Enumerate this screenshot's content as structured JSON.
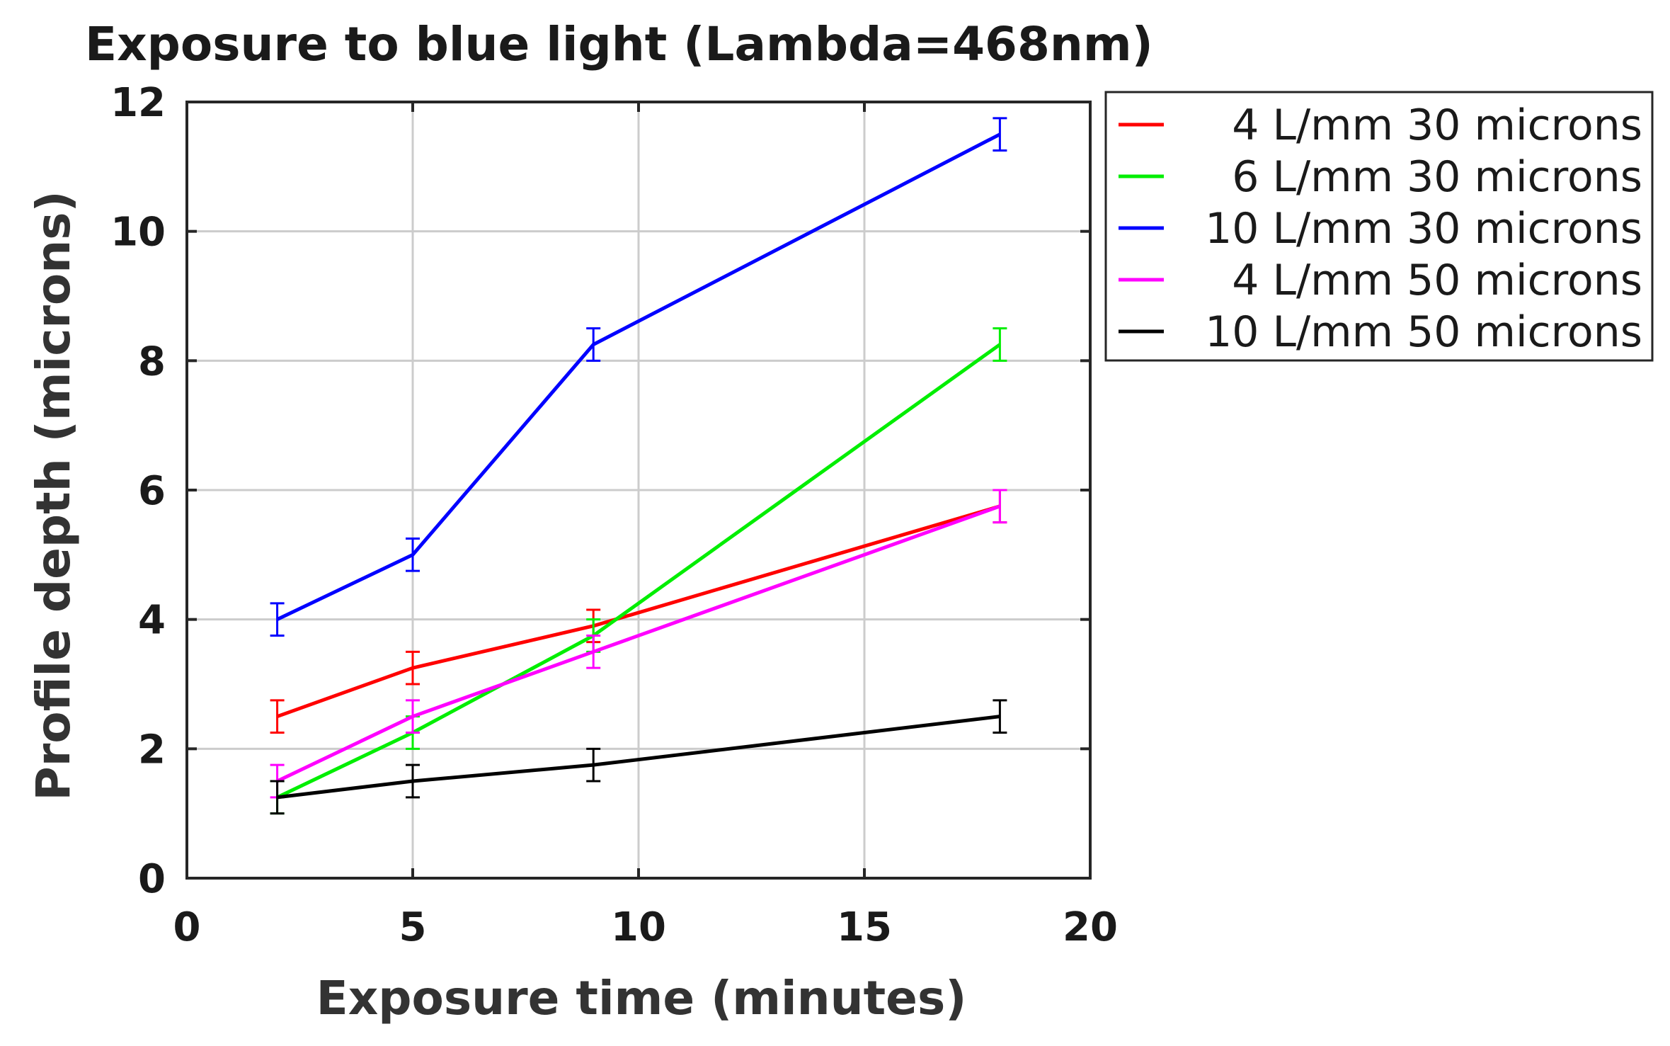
{
  "chart_data": {
    "type": "line",
    "title": "Exposure to blue light (Lambda=468nm)",
    "xlabel": "Exposure time (minutes)",
    "ylabel": "Profile depth (microns)",
    "xlim": [
      0,
      20
    ],
    "ylim": [
      0,
      12
    ],
    "xticks": [
      0,
      5,
      10,
      15,
      20
    ],
    "yticks": [
      0,
      2,
      4,
      6,
      8,
      10,
      12
    ],
    "grid": true,
    "legend_position": "outside-right-top",
    "x": [
      2,
      5,
      9,
      18
    ],
    "series": [
      {
        "name": "4 L/mm 30 microns",
        "color": "#ff0000",
        "values": [
          2.5,
          3.25,
          3.9,
          5.75
        ],
        "error": [
          0.25,
          0.25,
          0.25,
          0.25
        ]
      },
      {
        "name": "6 L/mm 30 microns",
        "color": "#00ee00",
        "values": [
          1.25,
          2.25,
          3.75,
          8.25
        ],
        "error": [
          0.25,
          0.25,
          0.25,
          0.25
        ]
      },
      {
        "name": "10 L/mm 30 microns",
        "color": "#0000ff",
        "values": [
          4.0,
          5.0,
          8.25,
          11.5
        ],
        "error": [
          0.25,
          0.25,
          0.25,
          0.25
        ]
      },
      {
        "name": "4 L/mm 50 microns",
        "color": "#ff00ff",
        "values": [
          1.5,
          2.5,
          3.5,
          5.75
        ],
        "error": [
          0.25,
          0.25,
          0.25,
          0.25
        ]
      },
      {
        "name": "10 L/mm 50 microns",
        "color": "#000000",
        "values": [
          1.25,
          1.5,
          1.75,
          2.5
        ],
        "error": [
          0.25,
          0.25,
          0.25,
          0.25
        ]
      }
    ]
  }
}
